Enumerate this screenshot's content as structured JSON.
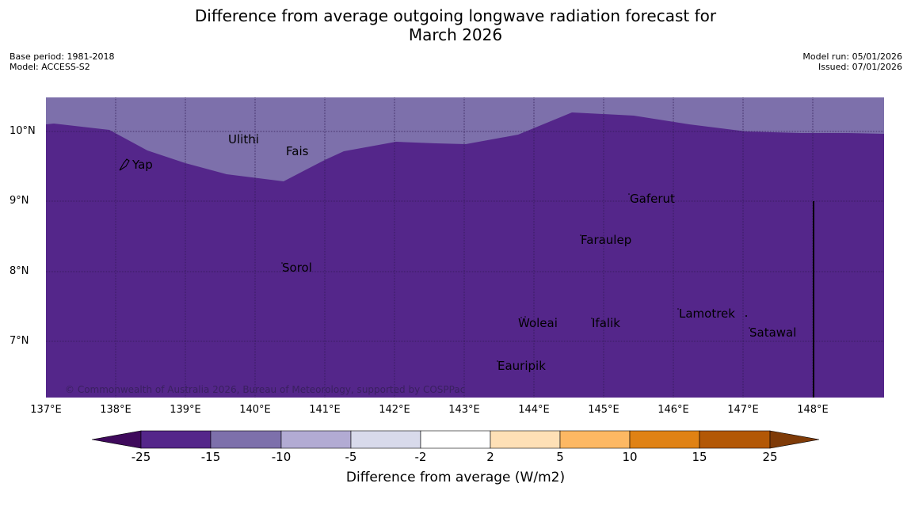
{
  "title": {
    "line1": "Difference from average outgoing longwave radiation forecast for",
    "line2": "March 2026"
  },
  "meta": {
    "base_period": "Base period: 1981-2018",
    "model": "Model: ACCESS-S2",
    "model_run": "Model run: 05/01/2026",
    "issued": "Issued: 07/01/2026"
  },
  "map": {
    "lat_labels": [
      "10°N",
      "9°N",
      "8°N",
      "7°N"
    ],
    "lon_labels": [
      "137°E",
      "138°E",
      "139°E",
      "140°E",
      "141°E",
      "142°E",
      "143°E",
      "144°E",
      "145°E",
      "146°E",
      "147°E",
      "148°E"
    ],
    "places": [
      "Yap",
      "Ulithi",
      "Fais",
      "Gaferut",
      "Faraulep",
      "Sorol",
      "Woleai",
      "Ifalik",
      "Lamotrek",
      "Satawal",
      "Eauripik"
    ],
    "copyright": "© Commonwealth of Australia 2026, Bureau of Meteorology, supported by COSPPac",
    "fill_colors": {
      "main": "#54268a",
      "light": "#7d70ab"
    }
  },
  "colorbar": {
    "title": "Difference from average (W/m2)",
    "ticks": [
      "-25",
      "-15",
      "-10",
      "-5",
      "-2",
      "2",
      "5",
      "10",
      "15",
      "25"
    ],
    "colors": [
      "#3f0a5c",
      "#54268a",
      "#7d70ab",
      "#b2abd3",
      "#d8daeb",
      "#ffffff",
      "#fee0b6",
      "#fdb863",
      "#e08214",
      "#b35806",
      "#7f3b08"
    ]
  }
}
